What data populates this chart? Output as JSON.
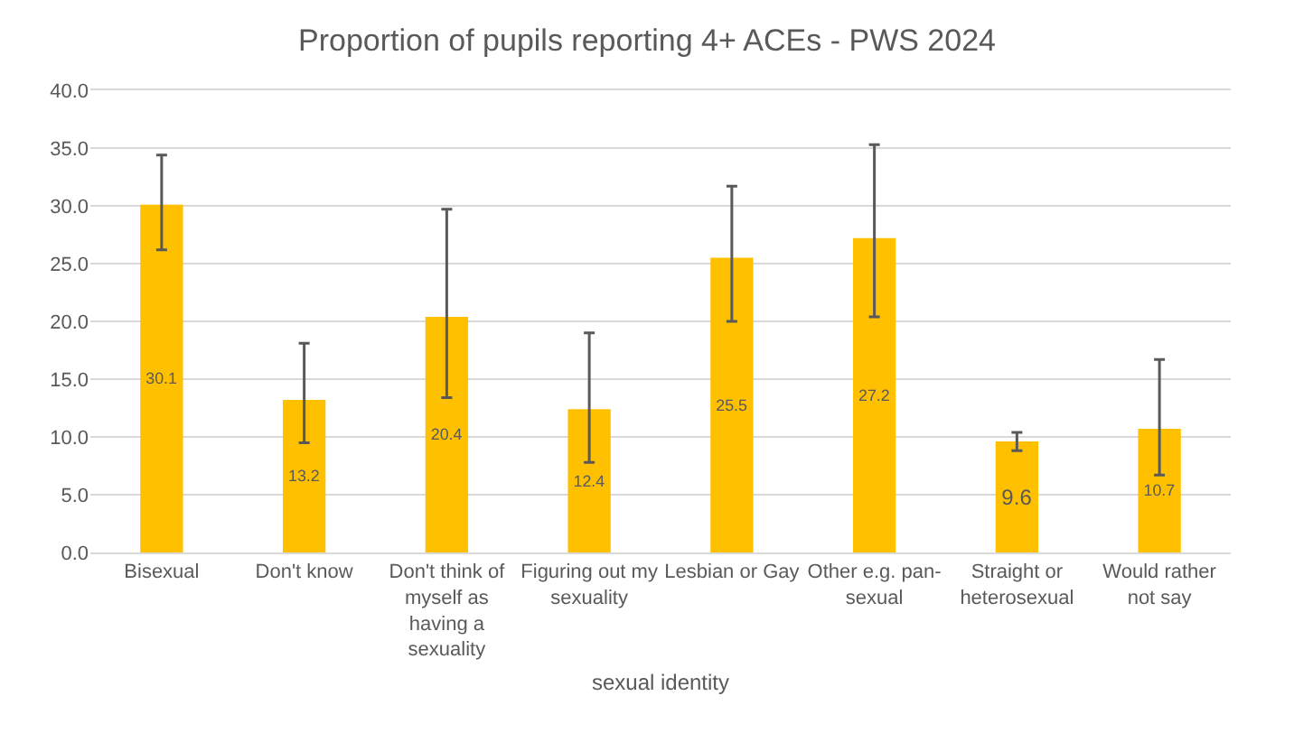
{
  "chart_data": {
    "type": "bar",
    "title": "Proportion of pupils reporting 4+ ACEs - PWS 2024",
    "xlabel": "sexual identity",
    "categories": [
      "Bisexual",
      "Don't know",
      "Don't think of myself as having a sexuality",
      "Figuring out my sexuality",
      "Lesbian or Gay",
      "Other e.g. pan-sexual",
      "Straight or heterosexual",
      "Would rather not say"
    ],
    "values": [
      30.1,
      13.2,
      20.4,
      12.4,
      25.5,
      27.2,
      9.6,
      10.7
    ],
    "errors": [
      [
        26.2,
        34.4
      ],
      [
        9.5,
        18.1
      ],
      [
        13.4,
        29.7
      ],
      [
        7.8,
        19.0
      ],
      [
        20.0,
        31.7
      ],
      [
        20.4,
        35.3
      ],
      [
        8.8,
        10.4
      ],
      [
        6.7,
        16.7
      ]
    ],
    "color": "#ffc000",
    "data_labels": true,
    "grid": "y",
    "ylim": [
      0,
      40
    ],
    "yticks": [
      {
        "value": 0,
        "label": "0.0"
      },
      {
        "value": 5,
        "label": "5.0"
      },
      {
        "value": 10,
        "label": "10.0"
      },
      {
        "value": 15,
        "label": "15.0"
      },
      {
        "value": 20,
        "label": "20.0"
      },
      {
        "value": 25,
        "label": "25.0"
      },
      {
        "value": 30,
        "label": "30.0"
      },
      {
        "value": 35,
        "label": "35.0"
      },
      {
        "value": 40,
        "label": "40.0"
      }
    ]
  }
}
